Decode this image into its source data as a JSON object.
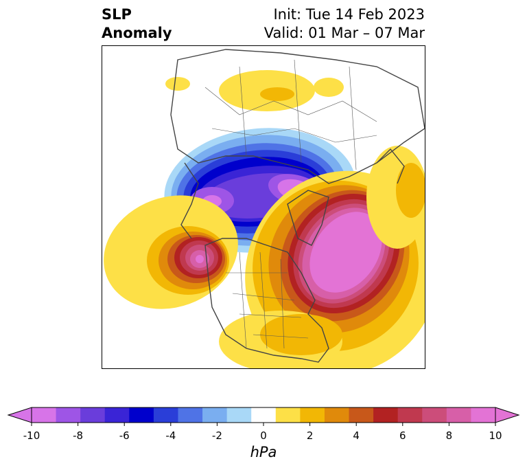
{
  "title": {
    "left_line1": "SLP",
    "left_line2": "Anomaly",
    "right_line1": "Init: Tue 14 Feb 2023",
    "right_line2": "Valid: 01 Mar – 07 Mar"
  },
  "colorbar": {
    "units": "hPa",
    "ticks": [
      "-10",
      "-8",
      "-6",
      "-4",
      "-2",
      "0",
      "2",
      "4",
      "6",
      "8",
      "10"
    ],
    "colors": [
      "#d774e8",
      "#9e55e6",
      "#6a3ddb",
      "#3a24d6",
      "#0000cc",
      "#2a3ed8",
      "#4f73e6",
      "#7aaef0",
      "#a9d8f7",
      "#ffffff",
      "#fde047",
      "#f2b705",
      "#e08a0b",
      "#c8581a",
      "#b22222",
      "#c0394f",
      "#cc4d7a",
      "#d75fa8",
      "#e373d5"
    ],
    "under_color": "#d774e8",
    "over_color": "#e373d5"
  },
  "map": {
    "projection": "north-polar",
    "region": "Northern Hemisphere",
    "anomaly_features": [
      {
        "name": "negative-polar",
        "sign": "negative",
        "peak_hpa": -10
      },
      {
        "name": "positive-north-atlantic",
        "sign": "positive",
        "peak_hpa": 10
      },
      {
        "name": "positive-north-pacific",
        "sign": "positive",
        "peak_hpa": 10
      }
    ]
  }
}
